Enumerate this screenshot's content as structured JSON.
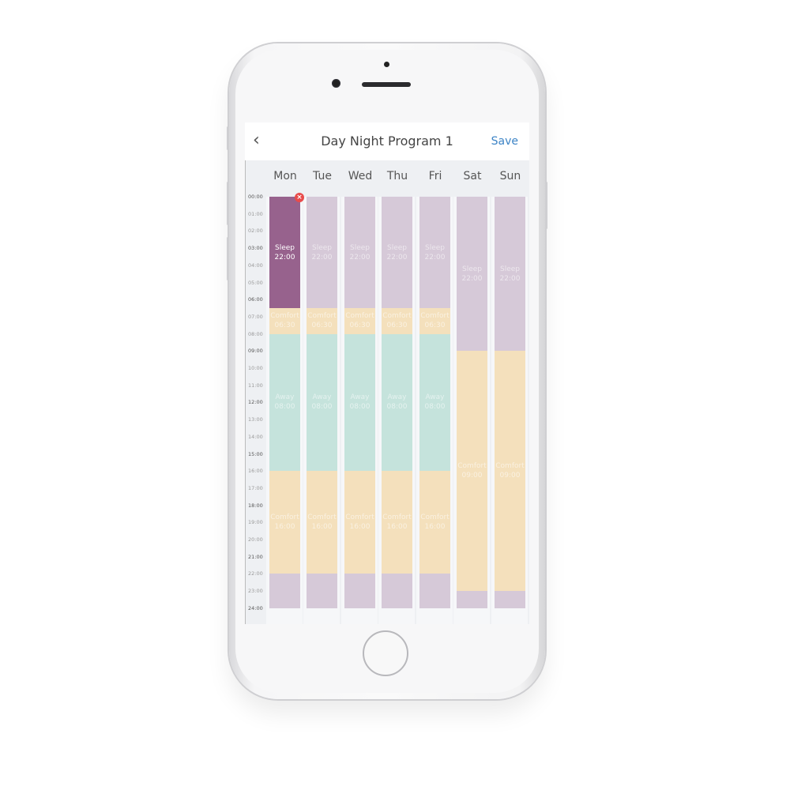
{
  "header": {
    "back_icon": "chevron-left-icon",
    "title": "Day Night Program 1",
    "save_label": "Save"
  },
  "days": [
    "Mon",
    "Tue",
    "Wed",
    "Thu",
    "Fri",
    "Sat",
    "Sun"
  ],
  "times": [
    "00:00",
    "01:00",
    "02:00",
    "03:00",
    "04:00",
    "05:00",
    "06:00",
    "07:00",
    "08:00",
    "09:00",
    "10:00",
    "11:00",
    "12:00",
    "13:00",
    "14:00",
    "15:00",
    "16:00",
    "17:00",
    "18:00",
    "19:00",
    "20:00",
    "21:00",
    "22:00",
    "23:00",
    "24:00"
  ],
  "colors": {
    "sleep": "#d6c9d8",
    "sleep_selected": "#97628d",
    "comfort": "#f4e0bc",
    "away": "#c5e3dc",
    "delete": "#e84b4b",
    "accent": "#3d84c6"
  },
  "schedule": {
    "weekday": [
      {
        "type": "sleep",
        "start": 0,
        "end": 6.5,
        "label": "Sleep",
        "time": "22:00"
      },
      {
        "type": "comfort",
        "start": 6.5,
        "end": 8,
        "label": "Comfort",
        "time": "06:30"
      },
      {
        "type": "away",
        "start": 8,
        "end": 16,
        "label": "Away",
        "time": "08:00"
      },
      {
        "type": "comfort",
        "start": 16,
        "end": 22,
        "label": "Comfort",
        "time": "16:00"
      },
      {
        "type": "sleep",
        "start": 22,
        "end": 24,
        "label": "",
        "time": ""
      }
    ],
    "weekend": [
      {
        "type": "sleep",
        "start": 0,
        "end": 9,
        "label": "Sleep",
        "time": "22:00"
      },
      {
        "type": "comfort",
        "start": 9,
        "end": 23,
        "label": "Comfort",
        "time": "09:00"
      },
      {
        "type": "sleep",
        "start": 23,
        "end": 24,
        "label": "",
        "time": ""
      }
    ]
  },
  "selected": {
    "day": "Mon",
    "block": 0,
    "delete_icon": "close-icon"
  }
}
